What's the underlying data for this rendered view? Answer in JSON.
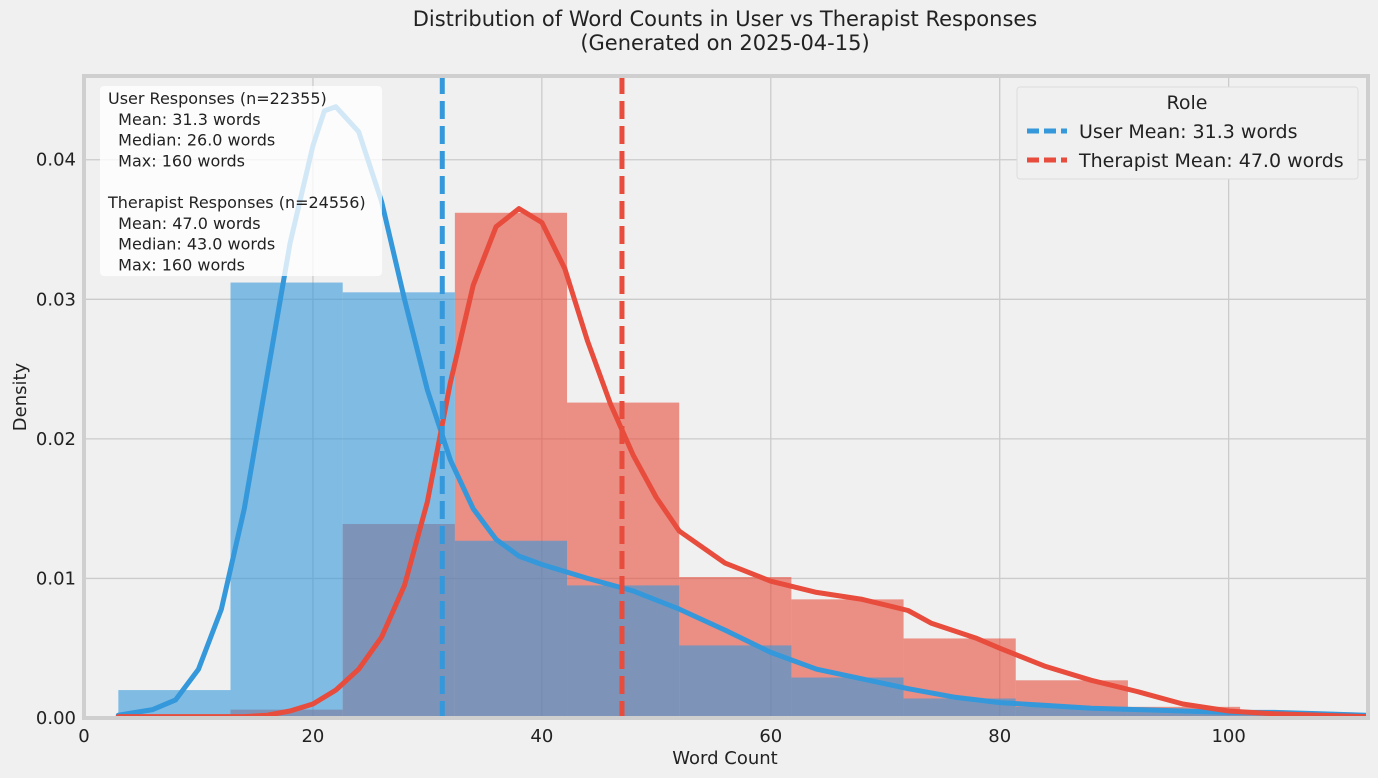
{
  "chart_data": {
    "type": "histogram",
    "title": "Distribution of Word Counts in User vs Therapist Responses",
    "subtitle": "(Generated on 2025-04-15)",
    "xlabel": "Word Count",
    "ylabel": "Density",
    "xlim": [
      0,
      112
    ],
    "ylim": [
      0,
      0.046
    ],
    "xticks": [
      0,
      20,
      40,
      60,
      80,
      100
    ],
    "yticks": [
      0.0,
      0.01,
      0.02,
      0.03,
      0.04
    ],
    "grid": true,
    "legend": {
      "title": "Role",
      "placement": "top-right",
      "entries": [
        "User Mean: 31.3 words",
        "Therapist Mean: 47.0 words"
      ]
    },
    "colors": {
      "user": "#3498db",
      "therapist": "#e74c3c",
      "overlap": "#7f93b8"
    },
    "bin_edges": [
      3,
      12.8,
      22.6,
      32.4,
      42.2,
      52.0,
      61.8,
      71.6,
      81.4,
      91.2,
      101.0,
      110.8,
      120.6
    ],
    "series": [
      {
        "name": "User",
        "density": [
          0.002,
          0.0312,
          0.0305,
          0.0127,
          0.0095,
          0.0052,
          0.0029,
          0.0014,
          0.0008,
          0.0006,
          0.0004,
          0.0003
        ],
        "kde": [
          [
            3,
            0.0002
          ],
          [
            6,
            0.0006
          ],
          [
            8,
            0.0013
          ],
          [
            10,
            0.0035
          ],
          [
            12,
            0.0078
          ],
          [
            14,
            0.015
          ],
          [
            16,
            0.0245
          ],
          [
            18,
            0.034
          ],
          [
            20,
            0.041
          ],
          [
            21,
            0.0435
          ],
          [
            22,
            0.0438
          ],
          [
            24,
            0.042
          ],
          [
            26,
            0.037
          ],
          [
            28,
            0.03
          ],
          [
            30,
            0.0235
          ],
          [
            32,
            0.0185
          ],
          [
            34,
            0.015
          ],
          [
            36,
            0.0128
          ],
          [
            38,
            0.0116
          ],
          [
            40,
            0.011
          ],
          [
            44,
            0.01
          ],
          [
            48,
            0.0091
          ],
          [
            52,
            0.0078
          ],
          [
            56,
            0.0063
          ],
          [
            60,
            0.0047
          ],
          [
            64,
            0.0035
          ],
          [
            68,
            0.0028
          ],
          [
            72,
            0.0021
          ],
          [
            76,
            0.0015
          ],
          [
            80,
            0.0011
          ],
          [
            84,
            0.0009
          ],
          [
            88,
            0.0007
          ],
          [
            92,
            0.0006
          ],
          [
            96,
            0.0005
          ],
          [
            100,
            0.0004
          ],
          [
            104,
            0.0004
          ],
          [
            108,
            0.0003
          ],
          [
            112,
            0.0002
          ]
        ],
        "mean": 31.3,
        "mean_label": "User Mean: 31.3 words"
      },
      {
        "name": "Therapist",
        "density": [
          0.0001,
          0.0006,
          0.0139,
          0.0362,
          0.0226,
          0.0101,
          0.0085,
          0.0057,
          0.0027,
          0.0008,
          0.0003,
          0.0001
        ],
        "kde": [
          [
            3,
            0.0001
          ],
          [
            14,
            0.0001
          ],
          [
            16,
            0.0002
          ],
          [
            18,
            0.0005
          ],
          [
            20,
            0.001
          ],
          [
            22,
            0.002
          ],
          [
            24,
            0.0035
          ],
          [
            26,
            0.0058
          ],
          [
            28,
            0.0095
          ],
          [
            30,
            0.0155
          ],
          [
            32,
            0.024
          ],
          [
            34,
            0.031
          ],
          [
            36,
            0.0352
          ],
          [
            38,
            0.0365
          ],
          [
            40,
            0.0355
          ],
          [
            42,
            0.0322
          ],
          [
            44,
            0.027
          ],
          [
            46,
            0.0225
          ],
          [
            48,
            0.0188
          ],
          [
            50,
            0.0158
          ],
          [
            52,
            0.0134
          ],
          [
            56,
            0.0111
          ],
          [
            60,
            0.0098
          ],
          [
            64,
            0.009
          ],
          [
            68,
            0.0085
          ],
          [
            72,
            0.0077
          ],
          [
            74,
            0.0068
          ],
          [
            78,
            0.0057
          ],
          [
            80,
            0.005
          ],
          [
            84,
            0.0037
          ],
          [
            88,
            0.0027
          ],
          [
            92,
            0.0019
          ],
          [
            96,
            0.001
          ],
          [
            100,
            0.0005
          ],
          [
            104,
            0.0003
          ],
          [
            108,
            0.0002
          ],
          [
            112,
            0.0001
          ]
        ],
        "mean": 47.0,
        "mean_label": "Therapist Mean: 47.0 words"
      }
    ],
    "annotation": {
      "lines": [
        "User Responses (n=22355)",
        "  Mean: 31.3 words",
        "  Median: 26.0 words",
        "  Max: 160 words",
        "",
        "Therapist Responses (n=24556)",
        "  Mean: 47.0 words",
        "  Median: 43.0 words",
        "  Max: 160 words"
      ]
    }
  }
}
